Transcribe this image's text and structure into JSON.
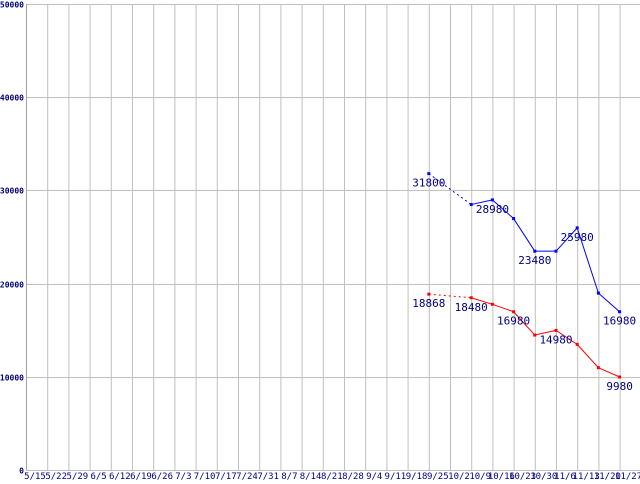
{
  "chart_data": {
    "type": "line",
    "title": "",
    "xlabel": "",
    "ylabel": "",
    "ylim": [
      0,
      50000
    ],
    "yticks": [
      "0",
      "10000",
      "20000",
      "30000",
      "40000",
      "50000"
    ],
    "grid": true,
    "categories": [
      "5/15",
      "5/22",
      "5/29",
      "6/5",
      "6/12",
      "6/19",
      "6/26",
      "7/3",
      "7/10",
      "7/17",
      "7/24",
      "7/31",
      "8/7",
      "8/14",
      "8/21",
      "8/28",
      "9/4",
      "9/11",
      "9/18",
      "9/25",
      "10/2",
      "10/9",
      "10/16",
      "10/23",
      "10/30",
      "11/6",
      "11/13",
      "11/20",
      "11/27"
    ],
    "series": [
      {
        "name": "blue",
        "color": "#0000ff",
        "values": [
          null,
          null,
          null,
          null,
          null,
          null,
          null,
          null,
          null,
          null,
          null,
          null,
          null,
          null,
          null,
          null,
          null,
          null,
          null,
          31800,
          null,
          28480,
          28980,
          26980,
          23480,
          23480,
          25980,
          18980,
          16980
        ],
        "labels": {
          "19": "31800",
          "22": "28980",
          "24": "23480",
          "26": "25980",
          "28": "16980"
        }
      },
      {
        "name": "red",
        "color": "#ff0000",
        "values": [
          null,
          null,
          null,
          null,
          null,
          null,
          null,
          null,
          null,
          null,
          null,
          null,
          null,
          null,
          null,
          null,
          null,
          null,
          null,
          18868,
          null,
          18480,
          17780,
          16980,
          14480,
          14980,
          13480,
          10980,
          9980
        ],
        "labels": {
          "19": "18868",
          "21": "18480",
          "23": "16980",
          "25": "14980",
          "28": "9980"
        }
      }
    ]
  }
}
